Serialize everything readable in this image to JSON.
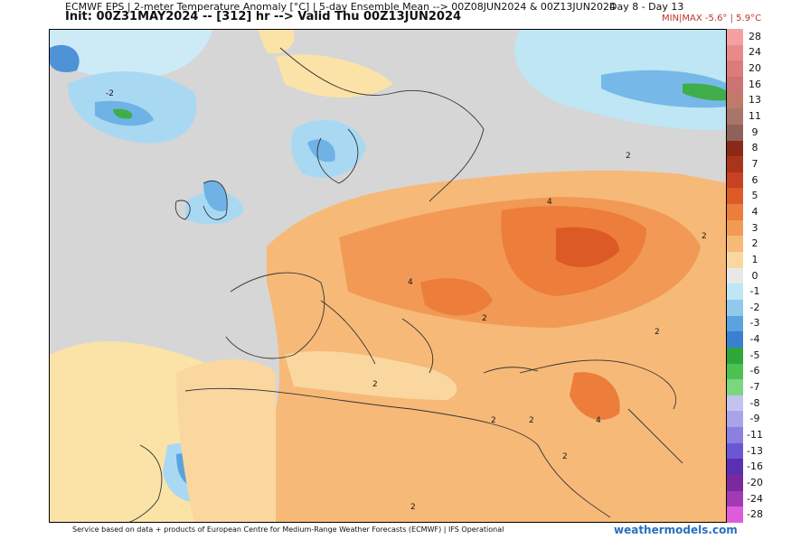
{
  "header": {
    "title": "ECMWF EPS | 2-meter Temperature Anomaly [°C] | 5-day Ensemble Mean --> 00Z08JUN2024 & 00Z13JUN2024",
    "init": "Init: 00Z31MAY2024 -- [312] hr --> Valid Thu 00Z13JUN2024",
    "day_range": "Day 8 - Day 13",
    "minmax": "MIN|MAX -5.6° | 5.9°C"
  },
  "colorbar": {
    "labels": [
      "28",
      "24",
      "20",
      "16",
      "13",
      "11",
      "9",
      "8",
      "7",
      "6",
      "5",
      "4",
      "3",
      "2",
      "1",
      "0",
      "-1",
      "-2",
      "-3",
      "-4",
      "-5",
      "-6",
      "-7",
      "-8",
      "-9",
      "-11",
      "-13",
      "-16",
      "-20",
      "-24",
      "-28"
    ],
    "colors": [
      "#f4a0a0",
      "#e98a8a",
      "#dc7b7b",
      "#cc7373",
      "#bf7a6a",
      "#a9756a",
      "#8e6258",
      "#8a2a16",
      "#a8351a",
      "#c64220",
      "#dc5a26",
      "#ec7d3a",
      "#f29a55",
      "#f7b978",
      "#fad79f",
      "#e8e8e8",
      "#bfe6f4",
      "#8fc9ec",
      "#5aa3df",
      "#3b7fd0",
      "#2fa63a",
      "#4cc14f",
      "#7bd67c",
      "#c3c3f0",
      "#a9a4ea",
      "#8b7fe0",
      "#6b56d4",
      "#5a2fb0",
      "#7a2a9e",
      "#a23ab4",
      "#dd5cdc"
    ]
  },
  "map": {
    "contour_labels": [
      "-2",
      "2",
      "2",
      "4",
      "4",
      "2",
      "2",
      "2",
      "2",
      "2",
      "2",
      "4",
      "2"
    ]
  },
  "footer": {
    "credit": "Service based on data + products of European Centre for Medium-Range Weather Forecasts (ECMWF) | IFS Operational",
    "site": "weathermodels.com"
  }
}
